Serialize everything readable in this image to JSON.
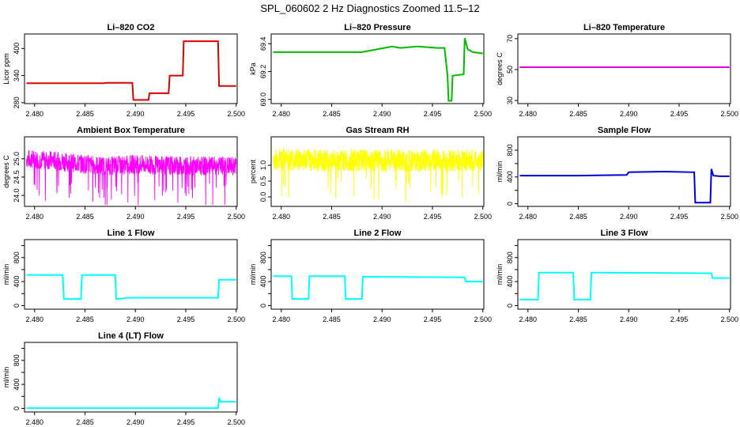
{
  "figure": {
    "title": "SPL_060602  2 Hz Diagnostics Zoomed 11.5–12"
  },
  "chart_data": [
    {
      "type": "line",
      "title": "Li–820 CO2",
      "ylabel": "Licor ppm",
      "color": "#dd0000",
      "xlim": [
        2.479,
        2.5001
      ],
      "ylim": [
        278,
        432
      ],
      "xticks": [
        2.48,
        2.485,
        2.49,
        2.495,
        2.5
      ],
      "xtick_labels": [
        "2.480",
        "2.485",
        "2.490",
        "2.495",
        "2.500"
      ],
      "yticks": [
        280,
        340,
        400
      ],
      "ytick_labels": [
        "280",
        "340",
        "400"
      ],
      "series": [
        {
          "x": [
            2.4792,
            2.4869,
            2.487,
            2.4897,
            2.4898,
            2.4913,
            2.4914,
            2.4933,
            2.4934,
            2.4947,
            2.4948,
            2.4982,
            2.4983,
            2.5
          ],
          "y": [
            323,
            323,
            324,
            324,
            286,
            286,
            301,
            301,
            340,
            340,
            416,
            416,
            317,
            317
          ]
        }
      ]
    },
    {
      "type": "line",
      "title": "Li–820 Pressure",
      "ylabel": "kPa",
      "color": "#00bb00",
      "xlim": [
        2.479,
        2.5001
      ],
      "ylim": [
        68.97,
        69.47
      ],
      "xticks": [
        2.48,
        2.485,
        2.49,
        2.495,
        2.5
      ],
      "xtick_labels": [
        "2.480",
        "2.485",
        "2.490",
        "2.495",
        "2.500"
      ],
      "yticks": [
        69.0,
        69.2,
        69.4
      ],
      "ytick_labels": [
        "69.0",
        "69.2",
        "69.4"
      ],
      "series": [
        {
          "x": [
            2.4792,
            2.485,
            2.488,
            2.4895,
            2.491,
            2.4918,
            2.4935,
            2.4955,
            2.4962,
            2.4965,
            2.4966,
            2.4969,
            2.497,
            2.4981,
            2.4982,
            2.4985,
            2.499,
            2.5
          ],
          "y": [
            69.34,
            69.34,
            69.34,
            69.36,
            69.38,
            69.37,
            69.38,
            69.37,
            69.37,
            69.17,
            68.99,
            68.99,
            69.17,
            69.18,
            69.44,
            69.36,
            69.34,
            69.33
          ]
        }
      ]
    },
    {
      "type": "line",
      "title": "Li–820 Temperature",
      "ylabel": "degrees C",
      "color": "#dd00dd",
      "xlim": [
        2.479,
        2.5001
      ],
      "ylim": [
        28,
        73
      ],
      "xticks": [
        2.48,
        2.485,
        2.49,
        2.495,
        2.5
      ],
      "xtick_labels": [
        "2.480",
        "2.485",
        "2.490",
        "2.495",
        "2.500"
      ],
      "yticks": [
        30,
        50,
        70
      ],
      "ytick_labels": [
        "30",
        "50",
        "70"
      ],
      "series": [
        {
          "x": [
            2.4792,
            2.5
          ],
          "y": [
            51.5,
            51.5
          ]
        }
      ]
    },
    {
      "type": "line",
      "title": "Ambient Box Temperature",
      "ylabel": "degrees C",
      "color": "#ff00ff",
      "noise": 0.5,
      "xlim": [
        2.479,
        2.5001
      ],
      "ylim": [
        23.7,
        25.6
      ],
      "xticks": [
        2.48,
        2.485,
        2.49,
        2.495,
        2.5
      ],
      "xtick_labels": [
        "2.480",
        "2.485",
        "2.490",
        "2.495",
        "2.500"
      ],
      "yticks": [
        24.0,
        24.5,
        25.0
      ],
      "ytick_labels": [
        "24.0",
        "24.5",
        "25.0"
      ],
      "series": [
        {
          "x": [
            2.4792,
            2.482,
            2.485,
            2.487,
            2.49,
            2.495,
            2.5
          ],
          "y": [
            25.0,
            24.95,
            24.85,
            24.8,
            24.85,
            24.8,
            24.8
          ]
        }
      ]
    },
    {
      "type": "line",
      "title": "Gas Stream RH",
      "ylabel": "percent",
      "color": "#ffff00",
      "noise": 0.6,
      "xlim": [
        2.479,
        2.5001
      ],
      "ylim": [
        -0.3,
        1.9
      ],
      "xticks": [
        2.48,
        2.485,
        2.49,
        2.495,
        2.5
      ],
      "xtick_labels": [
        "2.480",
        "2.485",
        "2.490",
        "2.495",
        "2.500"
      ],
      "yticks": [
        0.0,
        0.5,
        1.0
      ],
      "ytick_labels": [
        "0.0",
        "0.5",
        "1.0"
      ],
      "series": [
        {
          "x": [
            2.4792,
            2.485,
            2.49,
            2.495,
            2.5
          ],
          "y": [
            1.2,
            1.15,
            1.15,
            1.15,
            1.15
          ]
        }
      ]
    },
    {
      "type": "line",
      "title": "Sample Flow",
      "ylabel": "ml/min",
      "color": "#0000dd",
      "xlim": [
        2.479,
        2.5001
      ],
      "ylim": [
        -40,
        1000
      ],
      "xticks": [
        2.48,
        2.485,
        2.49,
        2.495,
        2.5
      ],
      "xtick_labels": [
        "2.480",
        "2.485",
        "2.490",
        "2.495",
        "2.500"
      ],
      "yticks": [
        0,
        200,
        400,
        600,
        800
      ],
      "ytick_labels": [
        "0",
        "",
        "400",
        "",
        "800"
      ],
      "series": [
        {
          "x": [
            2.4792,
            2.485,
            2.4898,
            2.49,
            2.4935,
            2.4965,
            2.4966,
            2.4981,
            2.4982,
            2.4984,
            2.499,
            2.5
          ],
          "y": [
            420,
            420,
            430,
            470,
            480,
            470,
            15,
            15,
            520,
            420,
            410,
            410
          ]
        }
      ]
    },
    {
      "type": "line",
      "title": "Line 1 Flow",
      "ylabel": "ml/min",
      "color": "#00ffff",
      "xlim": [
        2.479,
        2.5001
      ],
      "ylim": [
        -60,
        1100
      ],
      "xticks": [
        2.48,
        2.485,
        2.49,
        2.495,
        2.5
      ],
      "xtick_labels": [
        "2.480",
        "2.485",
        "2.490",
        "2.495",
        "2.500"
      ],
      "yticks": [
        0,
        200,
        400,
        600,
        800,
        1000
      ],
      "ytick_labels": [
        "0",
        "",
        "400",
        "",
        "800",
        ""
      ],
      "series": [
        {
          "x": [
            2.4792,
            2.4828,
            2.4829,
            2.4846,
            2.4847,
            2.488,
            2.4881,
            2.4894,
            2.4982,
            2.4983,
            2.5
          ],
          "y": [
            510,
            510,
            110,
            110,
            510,
            510,
            110,
            130,
            130,
            430,
            430
          ]
        }
      ]
    },
    {
      "type": "line",
      "title": "Line 2 Flow",
      "ylabel": "ml/min",
      "color": "#00ffff",
      "xlim": [
        2.479,
        2.5001
      ],
      "ylim": [
        -60,
        1100
      ],
      "xticks": [
        2.48,
        2.485,
        2.49,
        2.495,
        2.5
      ],
      "xtick_labels": [
        "2.480",
        "2.485",
        "2.490",
        "2.495",
        "2.500"
      ],
      "yticks": [
        0,
        200,
        400,
        600,
        800,
        1000
      ],
      "ytick_labels": [
        "0",
        "",
        "400",
        "",
        "800",
        ""
      ],
      "series": [
        {
          "x": [
            2.4792,
            2.481,
            2.4811,
            2.4827,
            2.4828,
            2.4863,
            2.4864,
            2.488,
            2.4881,
            2.4982,
            2.4983,
            2.5
          ],
          "y": [
            490,
            490,
            110,
            110,
            490,
            490,
            110,
            110,
            480,
            470,
            400,
            400
          ]
        }
      ]
    },
    {
      "type": "line",
      "title": "Line 3 Flow",
      "ylabel": "ml/min",
      "color": "#00ffff",
      "xlim": [
        2.479,
        2.5001
      ],
      "ylim": [
        -60,
        1100
      ],
      "xticks": [
        2.48,
        2.485,
        2.49,
        2.495,
        2.5
      ],
      "xtick_labels": [
        "2.480",
        "2.485",
        "2.490",
        "2.495",
        "2.500"
      ],
      "yticks": [
        0,
        200,
        400,
        600,
        800,
        1000
      ],
      "ytick_labels": [
        "0",
        "",
        "400",
        "",
        "800",
        ""
      ],
      "series": [
        {
          "x": [
            2.4792,
            2.481,
            2.4811,
            2.4845,
            2.4846,
            2.4862,
            2.4863,
            2.4982,
            2.4983,
            2.5
          ],
          "y": [
            100,
            100,
            550,
            550,
            100,
            100,
            550,
            540,
            460,
            460
          ]
        }
      ]
    },
    {
      "type": "line",
      "title": "Line 4 (LT) Flow",
      "ylabel": "ml/min",
      "color": "#00ffff",
      "xlim": [
        2.479,
        2.5001
      ],
      "ylim": [
        -60,
        1100
      ],
      "xticks": [
        2.48,
        2.485,
        2.49,
        2.495,
        2.5
      ],
      "xtick_labels": [
        "2.480",
        "2.485",
        "2.490",
        "2.495",
        "2.500"
      ],
      "yticks": [
        0,
        200,
        400,
        600,
        800,
        1000
      ],
      "ytick_labels": [
        "0",
        "",
        "400",
        "",
        "800",
        ""
      ],
      "series": [
        {
          "x": [
            2.4792,
            2.4982,
            2.4983,
            2.4985,
            2.5
          ],
          "y": [
            5,
            5,
            160,
            110,
            110
          ]
        }
      ]
    }
  ]
}
